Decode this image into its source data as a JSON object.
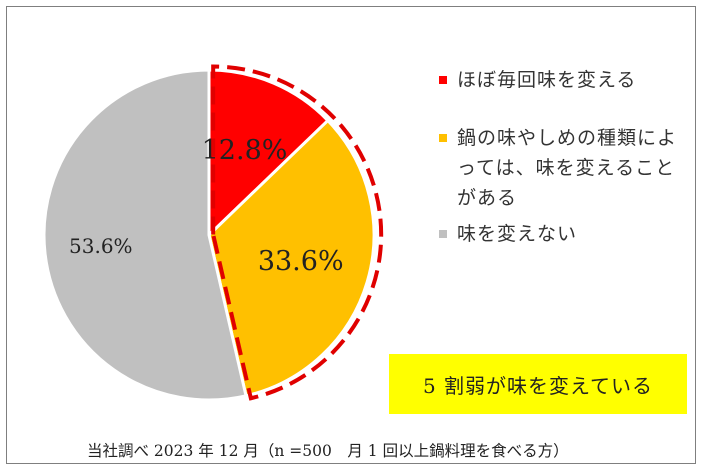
{
  "chart_data": {
    "type": "pie",
    "slices": [
      {
        "label": "ほぼ毎回味を変える",
        "value": 12.8,
        "display": "12.8%",
        "color": "#ff0000"
      },
      {
        "label": "鍋の味やしめの種類によっては、味を変えることがある",
        "value": 33.6,
        "display": "33.6%",
        "color": "#ffc000"
      },
      {
        "label": "味を変えない",
        "value": 53.6,
        "display": "53.6%",
        "color": "#c0c0c0"
      }
    ],
    "highlight": {
      "slices": [
        0,
        1
      ],
      "outline": "dashed",
      "color": "#e00000"
    },
    "legend_position": "right",
    "callout": "5 割弱が味を変えている",
    "source_note": "当社調べ 2023 年 12 月（n =500　月 1 回以上鍋料理を食べる方）"
  }
}
